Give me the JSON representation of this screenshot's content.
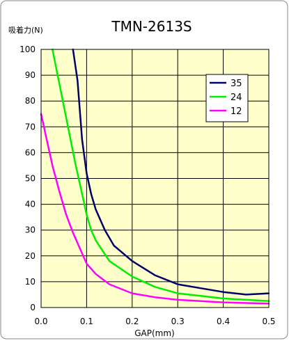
{
  "chart_data": {
    "type": "line",
    "title": "TMN-2613S",
    "ylabel": "吸着力(N)",
    "xlabel": "GAP(mm)",
    "xlim": [
      0,
      0.5
    ],
    "ylim": [
      0,
      100
    ],
    "x_ticks": [
      "0.0",
      "0.1",
      "0.2",
      "0.3",
      "0.4",
      "0.5"
    ],
    "y_ticks": [
      "0",
      "10",
      "20",
      "30",
      "40",
      "50",
      "60",
      "70",
      "80",
      "90",
      "100"
    ],
    "grid": true,
    "legend_position": "top-right",
    "plot_background": "#ffffcc",
    "series": [
      {
        "name": "35",
        "color": "#000066",
        "points": [
          [
            0.07,
            100
          ],
          [
            0.08,
            88
          ],
          [
            0.09,
            65
          ],
          [
            0.1,
            52
          ],
          [
            0.11,
            44
          ],
          [
            0.12,
            38
          ],
          [
            0.14,
            30
          ],
          [
            0.16,
            24
          ],
          [
            0.2,
            18
          ],
          [
            0.25,
            12.5
          ],
          [
            0.3,
            9
          ],
          [
            0.35,
            7.5
          ],
          [
            0.4,
            6
          ],
          [
            0.45,
            5
          ],
          [
            0.5,
            5.5
          ]
        ]
      },
      {
        "name": "24",
        "color": "#00ee00",
        "points": [
          [
            0.025,
            100
          ],
          [
            0.05,
            78
          ],
          [
            0.075,
            56
          ],
          [
            0.09,
            44
          ],
          [
            0.1,
            36
          ],
          [
            0.11,
            30
          ],
          [
            0.12,
            26
          ],
          [
            0.15,
            18
          ],
          [
            0.2,
            12
          ],
          [
            0.25,
            8
          ],
          [
            0.3,
            5.5
          ],
          [
            0.35,
            4.5
          ],
          [
            0.4,
            3.5
          ],
          [
            0.45,
            3
          ],
          [
            0.5,
            2.5
          ]
        ]
      },
      {
        "name": "12",
        "color": "#ff00ff",
        "points": [
          [
            0.0,
            75
          ],
          [
            0.01,
            67
          ],
          [
            0.025,
            55
          ],
          [
            0.04,
            45
          ],
          [
            0.055,
            36
          ],
          [
            0.07,
            29
          ],
          [
            0.085,
            23
          ],
          [
            0.1,
            17
          ],
          [
            0.12,
            13
          ],
          [
            0.15,
            9
          ],
          [
            0.2,
            5.5
          ],
          [
            0.25,
            4
          ],
          [
            0.3,
            3
          ],
          [
            0.4,
            2
          ],
          [
            0.5,
            1.5
          ]
        ]
      }
    ]
  }
}
